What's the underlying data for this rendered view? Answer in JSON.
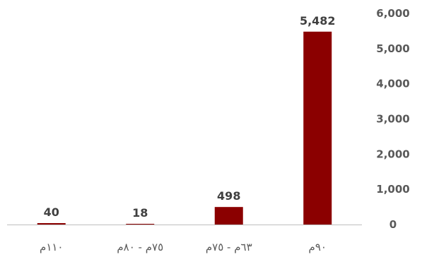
{
  "chart_data": {
    "type": "bar",
    "categories": [
      "١١٠م",
      "٧٥م - ٨٠م",
      "٦٣م - ٧٥م",
      "٩٠م"
    ],
    "values": [
      40,
      18,
      498,
      5482
    ],
    "data_labels": [
      "40",
      "18",
      "498",
      "5,482"
    ],
    "y_ticks": [
      0,
      1000,
      2000,
      3000,
      4000,
      5000,
      6000
    ],
    "y_tick_labels": [
      "0",
      "1,000",
      "2,000",
      "3,000",
      "4,000",
      "5,000",
      "6,000"
    ],
    "ylim": [
      0,
      6000
    ],
    "y_axis_position": "right",
    "grid": false,
    "legend": "none",
    "bar_color": "#8B0000",
    "axis_color": "#BFBFBF"
  }
}
